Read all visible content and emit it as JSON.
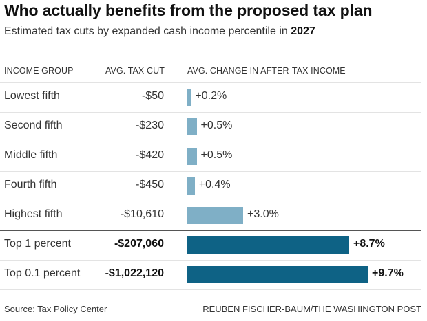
{
  "title": "Who actually benefits from the proposed tax plan",
  "subtitle_prefix": "Estimated tax cuts by expanded cash income percentile in ",
  "subtitle_year": "2027",
  "headers": {
    "group": "INCOME GROUP",
    "cut": "AVG. TAX CUT",
    "change": "AVG. CHANGE IN AFTER-TAX INCOME"
  },
  "colors": {
    "light_bar": "#7fafc6",
    "dark_bar": "#0e6285"
  },
  "chart_data": {
    "type": "bar",
    "orientation": "horizontal",
    "categories": [
      "Lowest fifth",
      "Second fifth",
      "Middle fifth",
      "Fourth fifth",
      "Highest fifth",
      "Top 1 percent",
      "Top 0.1 percent"
    ],
    "series": [
      {
        "values": [
          0.2,
          0.5,
          0.5,
          0.4,
          3.0,
          8.7,
          9.7
        ]
      }
    ],
    "value_labels": [
      "+0.2%",
      "+0.5%",
      "+0.5%",
      "+0.4%",
      "+3.0%",
      "+8.7%",
      "+9.7%"
    ],
    "tax_cut_labels": [
      "-$50",
      "-$230",
      "-$420",
      "-$450",
      "-$10,610",
      "-$207,060",
      "-$1,022,120"
    ],
    "xlim": [
      0,
      9.7
    ],
    "grid": false
  },
  "footer": {
    "source": "Source: Tax Policy Center",
    "credit": "REUBEN FISCHER-BAUM/THE WASHINGTON POST"
  }
}
